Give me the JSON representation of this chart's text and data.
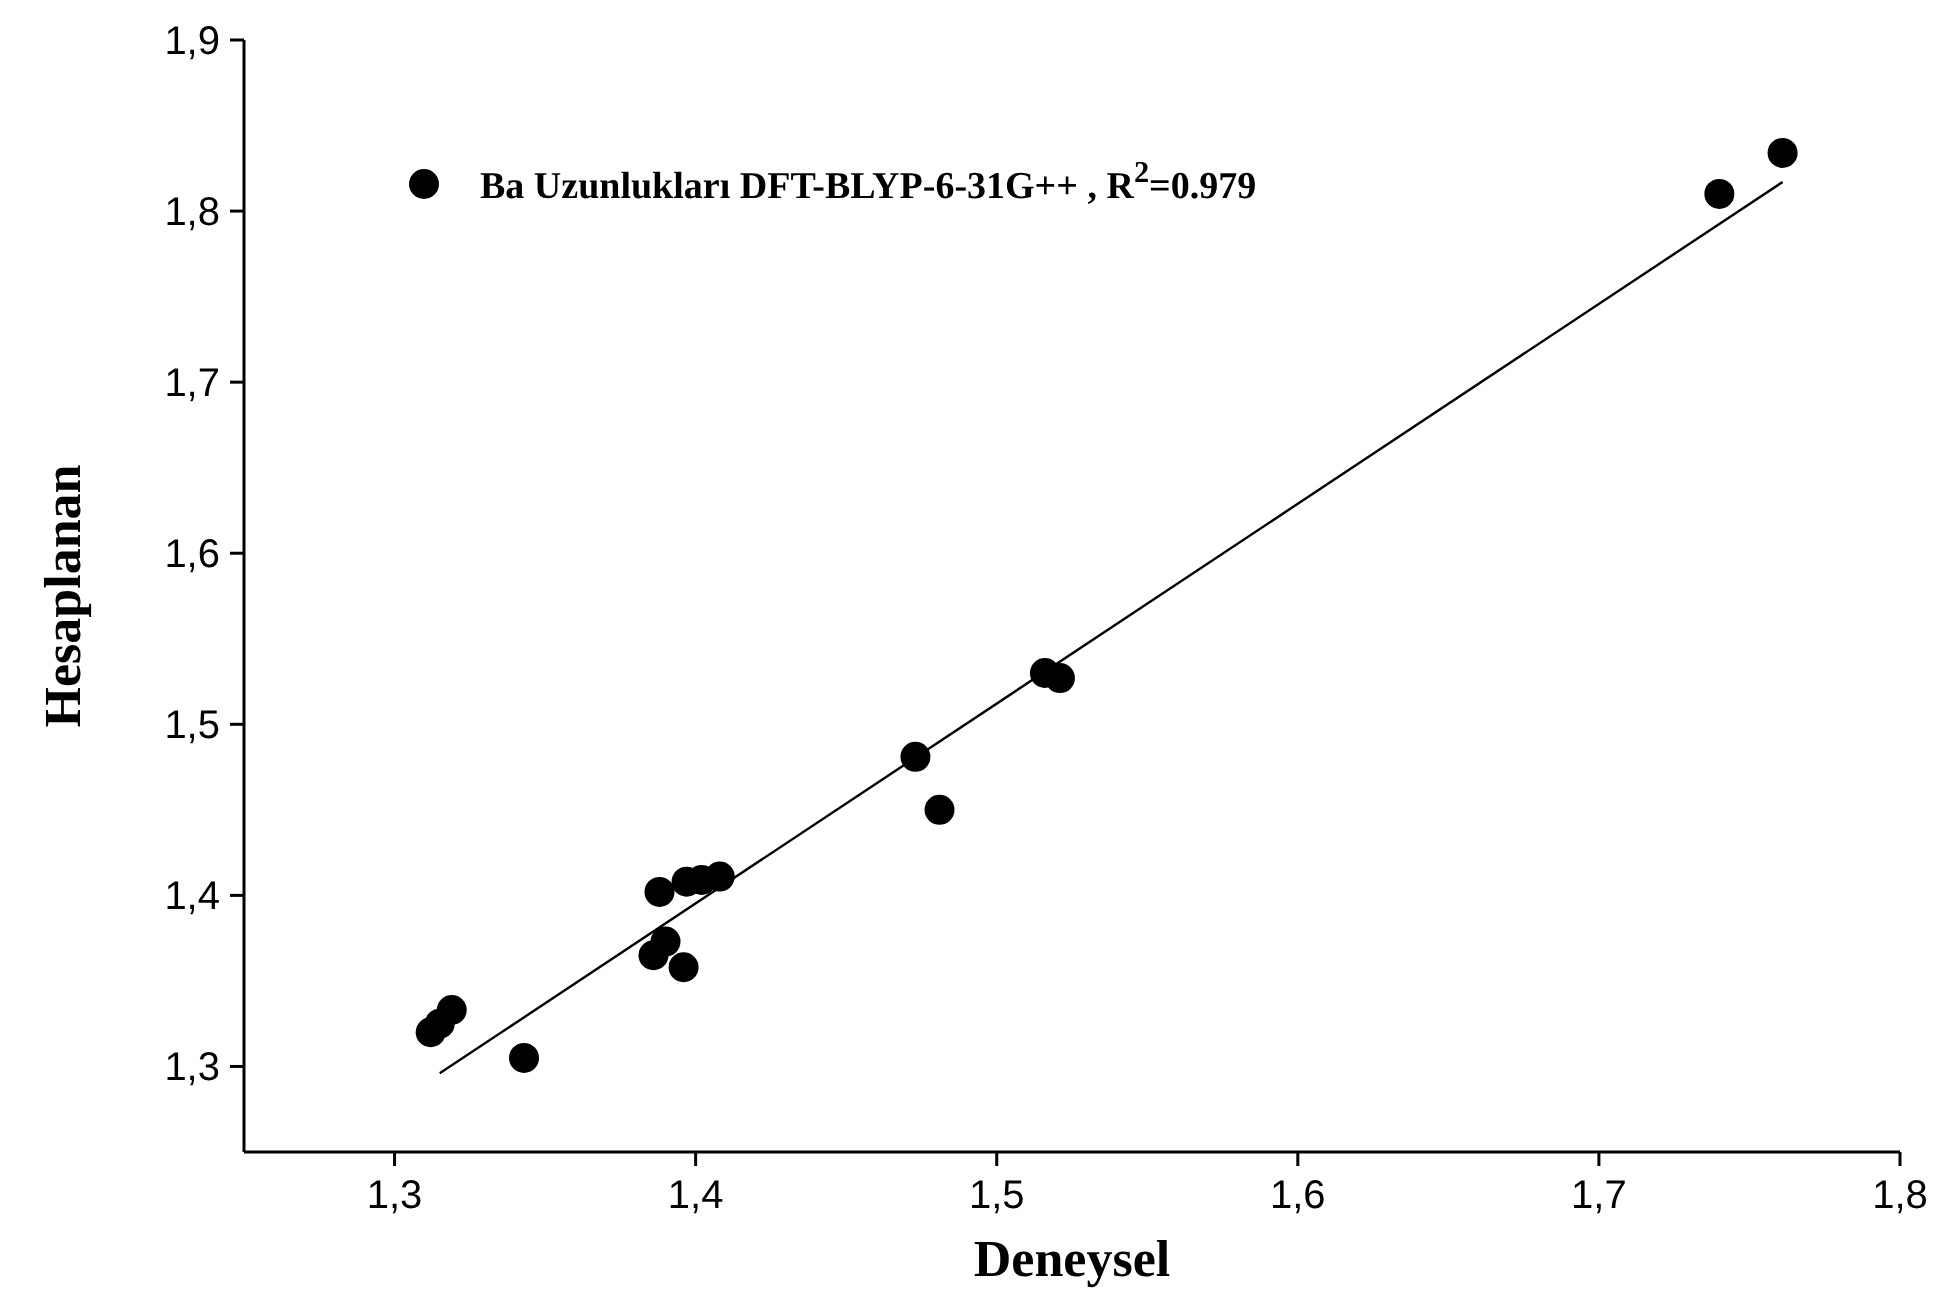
{
  "chart_data": {
    "type": "scatter",
    "xlabel": "Deneysel",
    "ylabel": "Hesaplanan",
    "xlim": [
      1.25,
      1.8
    ],
    "ylim": [
      1.25,
      1.9
    ],
    "xticks": [
      {
        "value": 1.3,
        "label": "1,3"
      },
      {
        "value": 1.4,
        "label": "1,4"
      },
      {
        "value": 1.5,
        "label": "1,5"
      },
      {
        "value": 1.6,
        "label": "1,6"
      },
      {
        "value": 1.7,
        "label": "1,7"
      },
      {
        "value": 1.8,
        "label": "1,8"
      }
    ],
    "yticks": [
      {
        "value": 1.3,
        "label": "1,3"
      },
      {
        "value": 1.4,
        "label": "1,4"
      },
      {
        "value": 1.5,
        "label": "1,5"
      },
      {
        "value": 1.6,
        "label": "1,6"
      },
      {
        "value": 1.7,
        "label": "1,7"
      },
      {
        "value": 1.8,
        "label": "1,8"
      },
      {
        "value": 1.9,
        "label": "1,9"
      }
    ],
    "grid": false,
    "legend": "top left",
    "marker": "circle",
    "series": [
      {
        "name": "Ba   Uzunlukları DFT-BLYP-6-31G++ , R$^{2}$=0.979",
        "color": "#000000",
        "x": [
          1.312,
          1.315,
          1.319,
          1.343,
          1.386,
          1.39,
          1.388,
          1.396,
          1.397,
          1.402,
          1.408,
          1.473,
          1.481,
          1.516,
          1.521,
          1.74,
          1.761
        ],
        "values": [
          1.32,
          1.325,
          1.333,
          1.305,
          1.365,
          1.373,
          1.402,
          1.358,
          1.408,
          1.409,
          1.411,
          1.481,
          1.45,
          1.53,
          1.527,
          1.81,
          1.834
        ]
      },
      {
        "type": "line",
        "color": "#000000",
        "x": [
          1.315,
          1.761
        ],
        "values": [
          1.296,
          1.817
        ],
        "line_style": "solid",
        "marker": "none"
      }
    ]
  }
}
